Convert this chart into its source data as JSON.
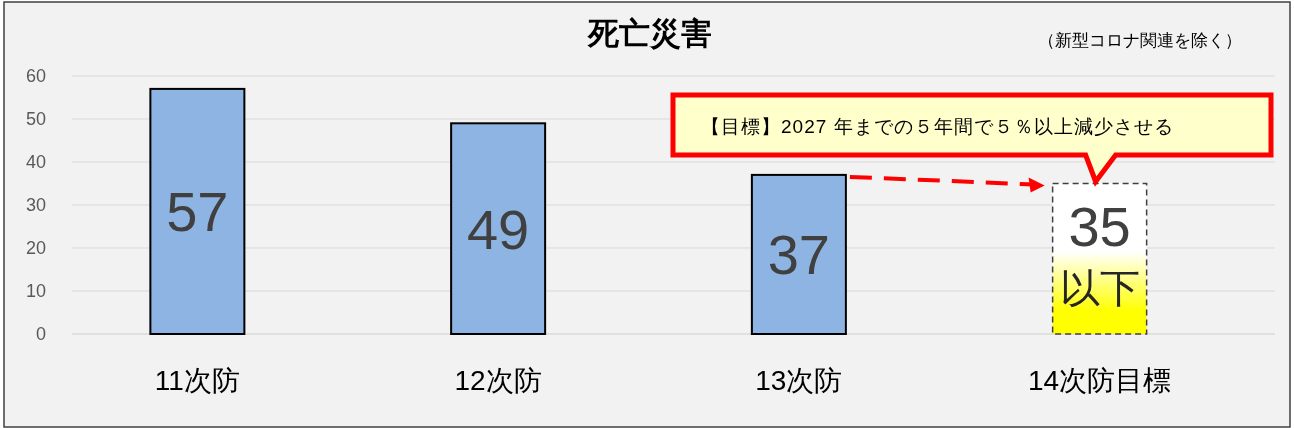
{
  "chart_data": {
    "type": "bar",
    "title": "死亡災害",
    "categories": [
      "11次防",
      "12次防",
      "13次防",
      "14次防目標"
    ],
    "series": [
      {
        "color": "#8eb4e3",
        "values": [
          57,
          49,
          37,
          null
        ]
      },
      {
        "color": "#ffff00",
        "values": [
          null,
          null,
          null,
          35
        ],
        "line_style": "dashed"
      }
    ],
    "ylim": [
      0,
      60
    ],
    "yticks": [
      0,
      10,
      20,
      30,
      40,
      50,
      60
    ],
    "grid": "y",
    "data_labels": true,
    "annotations": [
      "（新型コロナ関連を除く）",
      {
        "text": "【目標】2027 年までの５年間で５％以上減少させる",
        "x": "14次防目標",
        "y": 35
      },
      "以下"
    ]
  }
}
